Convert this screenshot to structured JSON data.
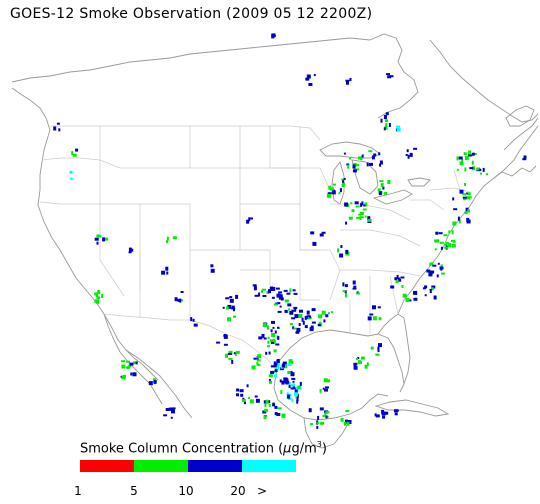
{
  "title": "GOES-12 Smoke Observation (2009 05 12  2200Z)",
  "legend": {
    "title_prefix": "Smoke Column Concentration (",
    "unit_mu": "μ",
    "unit_base": "g/m",
    "unit_exp": "3",
    "title_suffix": ")",
    "ticks": [
      "1",
      "5",
      "10",
      "20",
      ">"
    ],
    "colors": [
      "#ff0000",
      "#00ee00",
      "#0000cc",
      "#00ffff"
    ]
  },
  "map": {
    "coastline_color": "#999999",
    "state_line_color": "#cccccc",
    "background": "#ffffff"
  }
}
